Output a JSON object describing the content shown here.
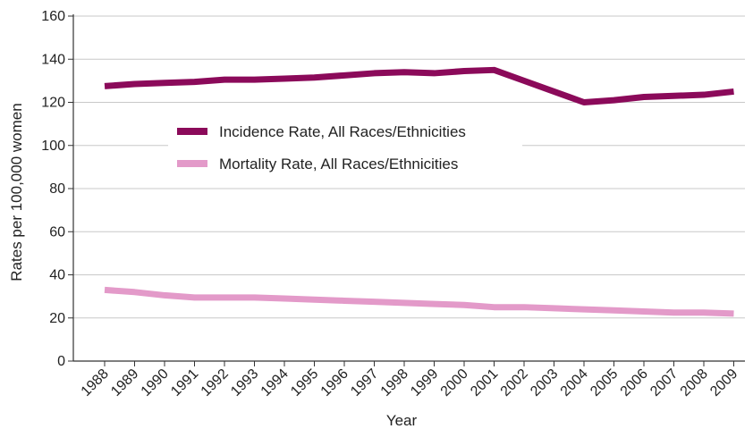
{
  "chart_data": {
    "type": "line",
    "title": "",
    "xlabel": "Year",
    "ylabel": "Rates per 100,000 women",
    "x": [
      "1988",
      "1989",
      "1990",
      "1991",
      "1992",
      "1993",
      "1994",
      "1995",
      "1996",
      "1997",
      "1998",
      "1999",
      "2000",
      "2001",
      "2002",
      "2003",
      "2004",
      "2005",
      "2006",
      "2007",
      "2008",
      "2009"
    ],
    "ylim": [
      0,
      160
    ],
    "yticks": [
      "0",
      "20",
      "40",
      "60",
      "80",
      "100",
      "120",
      "140",
      "160"
    ],
    "grid": "horizontal",
    "legend_position": "top-left",
    "series": [
      {
        "name": "Incidence Rate, All Races/Ethnicities",
        "color": "#8b0a5a",
        "values": [
          127.5,
          128.5,
          129,
          129.5,
          130.5,
          130.5,
          131,
          131.5,
          132.5,
          133.5,
          134,
          133.5,
          134.5,
          135,
          130,
          125,
          120,
          121,
          122.5,
          123,
          123.5,
          125
        ]
      },
      {
        "name": "Mortality Rate, All Races/Ethnicities",
        "color": "#e39ac9",
        "values": [
          33,
          32,
          30.5,
          29.5,
          29.5,
          29.5,
          29,
          28.5,
          28,
          27.5,
          27,
          26.5,
          26,
          25,
          25,
          24.5,
          24,
          23.5,
          23,
          22.5,
          22.5,
          22
        ]
      }
    ]
  }
}
